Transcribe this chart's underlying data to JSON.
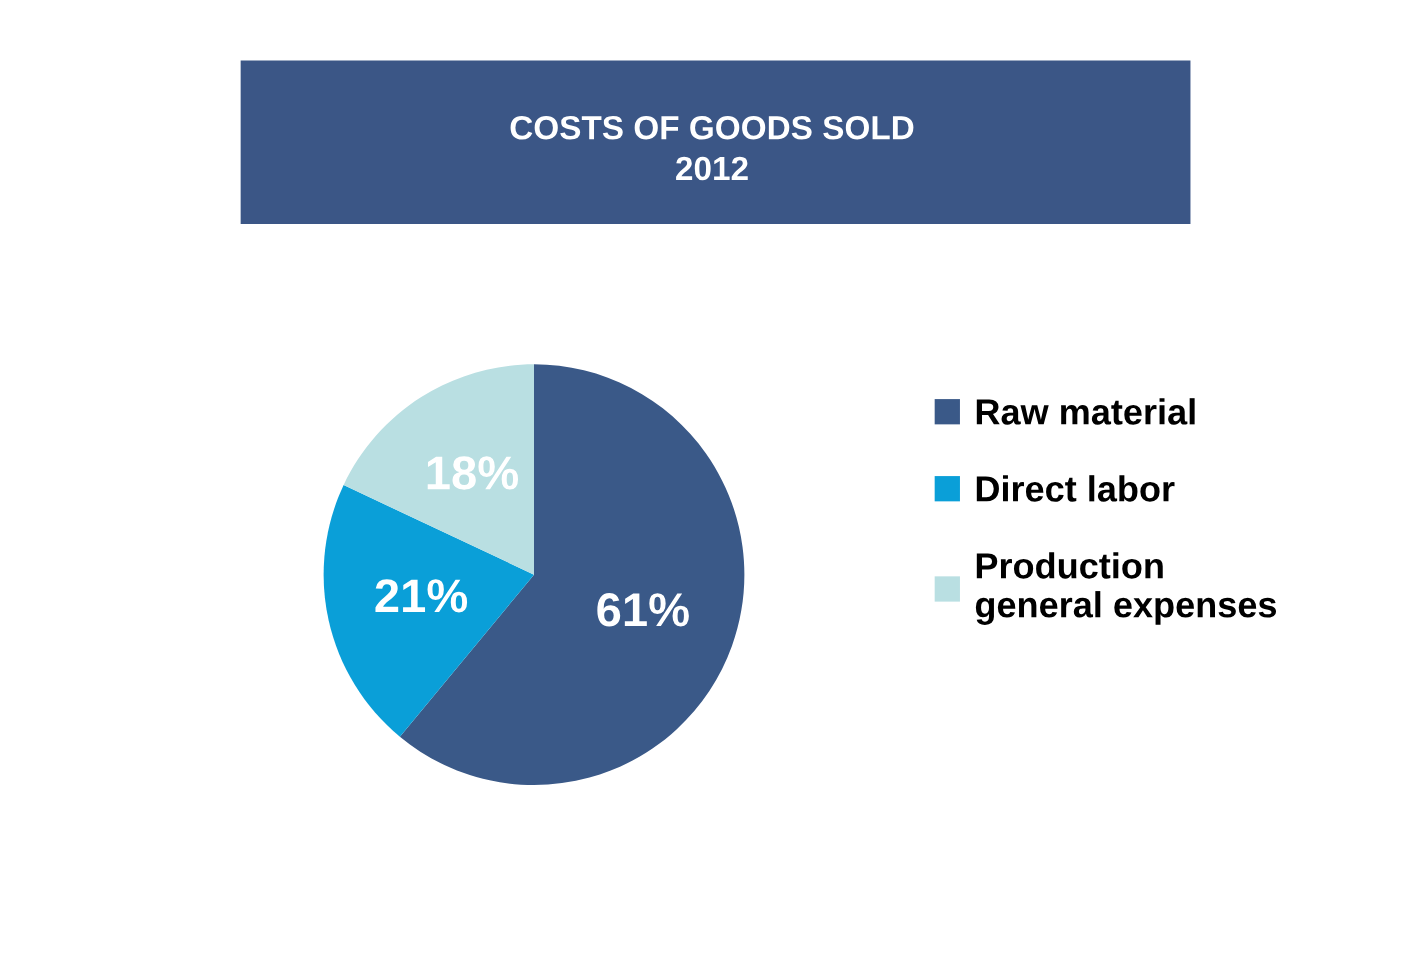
{
  "chart_data": {
    "type": "pie",
    "title": "COSTS OF GOODS SOLD\n2012",
    "categories": [
      "Raw material",
      "Direct labor",
      "Production\ngeneral expenses"
    ],
    "values": [
      61,
      21,
      18
    ],
    "colors": [
      "#3a5988",
      "#0a9fd8",
      "#b9dfe2"
    ],
    "value_labels": [
      "61%",
      "21%",
      "18%"
    ],
    "legend": "right"
  }
}
